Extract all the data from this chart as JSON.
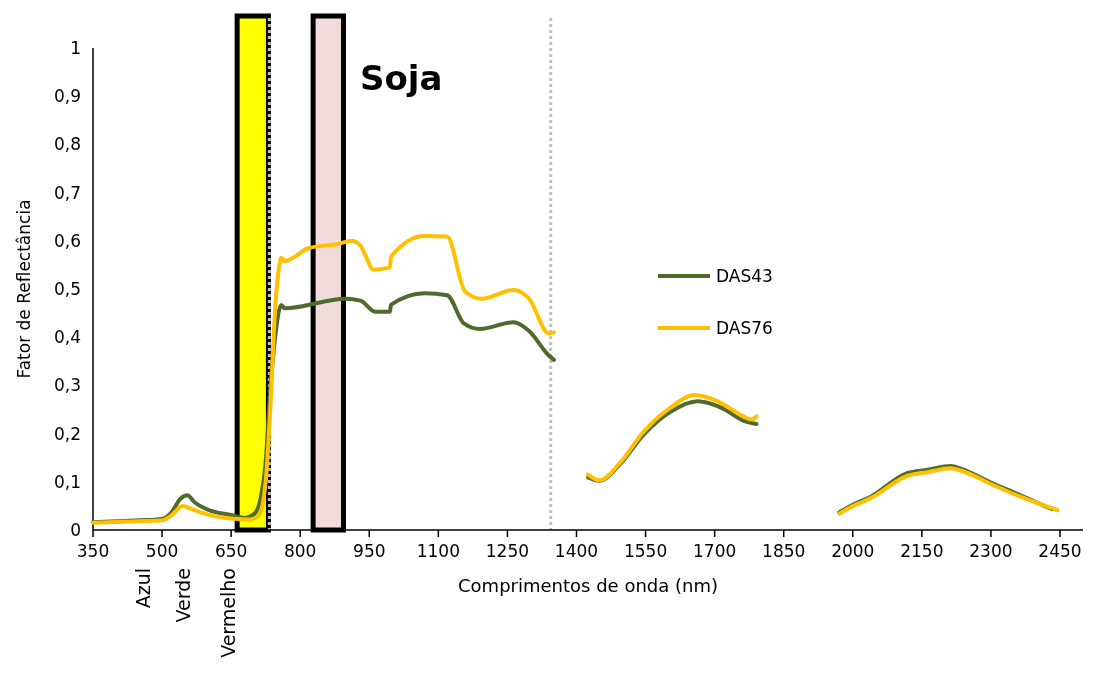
{
  "chart_data": {
    "type": "line",
    "title": "Soja",
    "xlabel": "Comprimentos de onda (nm)",
    "ylabel": "Fator de Reflectância",
    "xlim": [
      350,
      2500
    ],
    "xticks": [
      350,
      500,
      650,
      800,
      950,
      1100,
      1250,
      1400,
      1550,
      1700,
      1850,
      2000,
      2150,
      2300,
      2450
    ],
    "ylim": [
      0,
      1
    ],
    "yticks": [
      0,
      {
        "value": 0.1,
        "label": "0,1"
      },
      {
        "value": 0.2,
        "label": "0,2"
      },
      {
        "value": 0.3,
        "label": "0,3"
      },
      {
        "value": 0.4,
        "label": "0,4"
      },
      {
        "value": 0.5,
        "label": "0,5"
      },
      {
        "value": 0.6,
        "label": "0,6"
      },
      {
        "value": 0.7,
        "label": "0,7"
      },
      {
        "value": 0.8,
        "label": "0,8"
      },
      {
        "value": 0.9,
        "label": "0,9"
      },
      1
    ],
    "grid": false,
    "legend": "right",
    "marker": "none",
    "line_style": "solid",
    "series": [
      {
        "name": "DAS43",
        "color": "#4e6b2c",
        "x": [
          350,
          400,
          450,
          500,
          520,
          540,
          555,
          570,
          600,
          650,
          680,
          700,
          715,
          725,
          735,
          745,
          759,
          766,
          898,
          931,
          963,
          995,
          997,
          1070,
          1119,
          1156,
          1190,
          1263,
          1297,
          1340,
          1351
        ],
        "values": [
          0.016,
          0.018,
          0.02,
          0.023,
          0.036,
          0.065,
          0.072,
          0.058,
          0.042,
          0.031,
          0.025,
          0.033,
          0.07,
          0.14,
          0.29,
          0.395,
          0.467,
          0.46,
          0.48,
          0.476,
          0.453,
          0.453,
          0.467,
          0.491,
          0.487,
          0.428,
          0.417,
          0.431,
          0.413,
          0.362,
          0.353
        ]
      },
      {
        "name": "DAS76",
        "color": "#ffc000",
        "x": [
          350,
          450,
          500,
          520,
          545,
          560,
          600,
          650,
          690,
          710,
          725,
          735,
          745,
          755,
          759,
          766,
          819,
          884,
          911,
          931,
          941,
          959,
          995,
          997,
          1070,
          1119,
          1158,
          1194,
          1263,
          1297,
          1340,
          1351
        ],
        "values": [
          0.015,
          0.018,
          0.02,
          0.03,
          0.05,
          0.045,
          0.032,
          0.024,
          0.022,
          0.03,
          0.1,
          0.25,
          0.45,
          0.55,
          0.565,
          0.558,
          0.585,
          0.594,
          0.6,
          0.59,
          0.571,
          0.54,
          0.545,
          0.567,
          0.61,
          0.609,
          0.495,
          0.48,
          0.498,
          0.48,
          0.408,
          0.41
        ]
      },
      {
        "color": "#4e6b2c",
        "x": [
          1425,
          1450,
          1494,
          1546,
          1604,
          1663,
          1714,
          1765,
          1791
        ],
        "values": [
          0.109,
          0.102,
          0.136,
          0.198,
          0.245,
          0.267,
          0.254,
          0.226,
          0.22
        ]
      },
      {
        "color": "#ffc000",
        "x": [
          1425,
          1450,
          1494,
          1546,
          1604,
          1656,
          1707,
          1762,
          1780,
          1791
        ],
        "values": [
          0.115,
          0.103,
          0.139,
          0.204,
          0.254,
          0.28,
          0.267,
          0.236,
          0.229,
          0.236
        ]
      },
      {
        "color": "#4e6b2c",
        "x": [
          1971,
          2001,
          2037,
          2118,
          2162,
          2213,
          2236,
          2301,
          2367,
          2433
        ],
        "values": [
          0.037,
          0.053,
          0.068,
          0.118,
          0.125,
          0.133,
          0.127,
          0.098,
          0.071,
          0.043
        ]
      },
      {
        "color": "#ffc000",
        "x": [
          1971,
          2001,
          2037,
          2118,
          2162,
          2213,
          2236,
          2301,
          2367,
          2445
        ],
        "values": [
          0.034,
          0.05,
          0.065,
          0.112,
          0.12,
          0.128,
          0.123,
          0.095,
          0.068,
          0.041
        ]
      }
    ],
    "bands": [
      {
        "axis": "x",
        "from": 663,
        "to": 731,
        "color": "#ffff00"
      },
      {
        "axis": "x",
        "from": 828,
        "to": 894,
        "color": "#f2dcdb"
      }
    ],
    "ref_lines": [
      {
        "axis": "x",
        "value": 733,
        "color": "#bfbfbf",
        "line_style": "dotted"
      },
      {
        "axis": "x",
        "value": 1344,
        "color": "#bfbfbf",
        "line_style": "dotted"
      }
    ],
    "annotations": [
      "Azul",
      "Verde",
      "Vermelho"
    ]
  }
}
